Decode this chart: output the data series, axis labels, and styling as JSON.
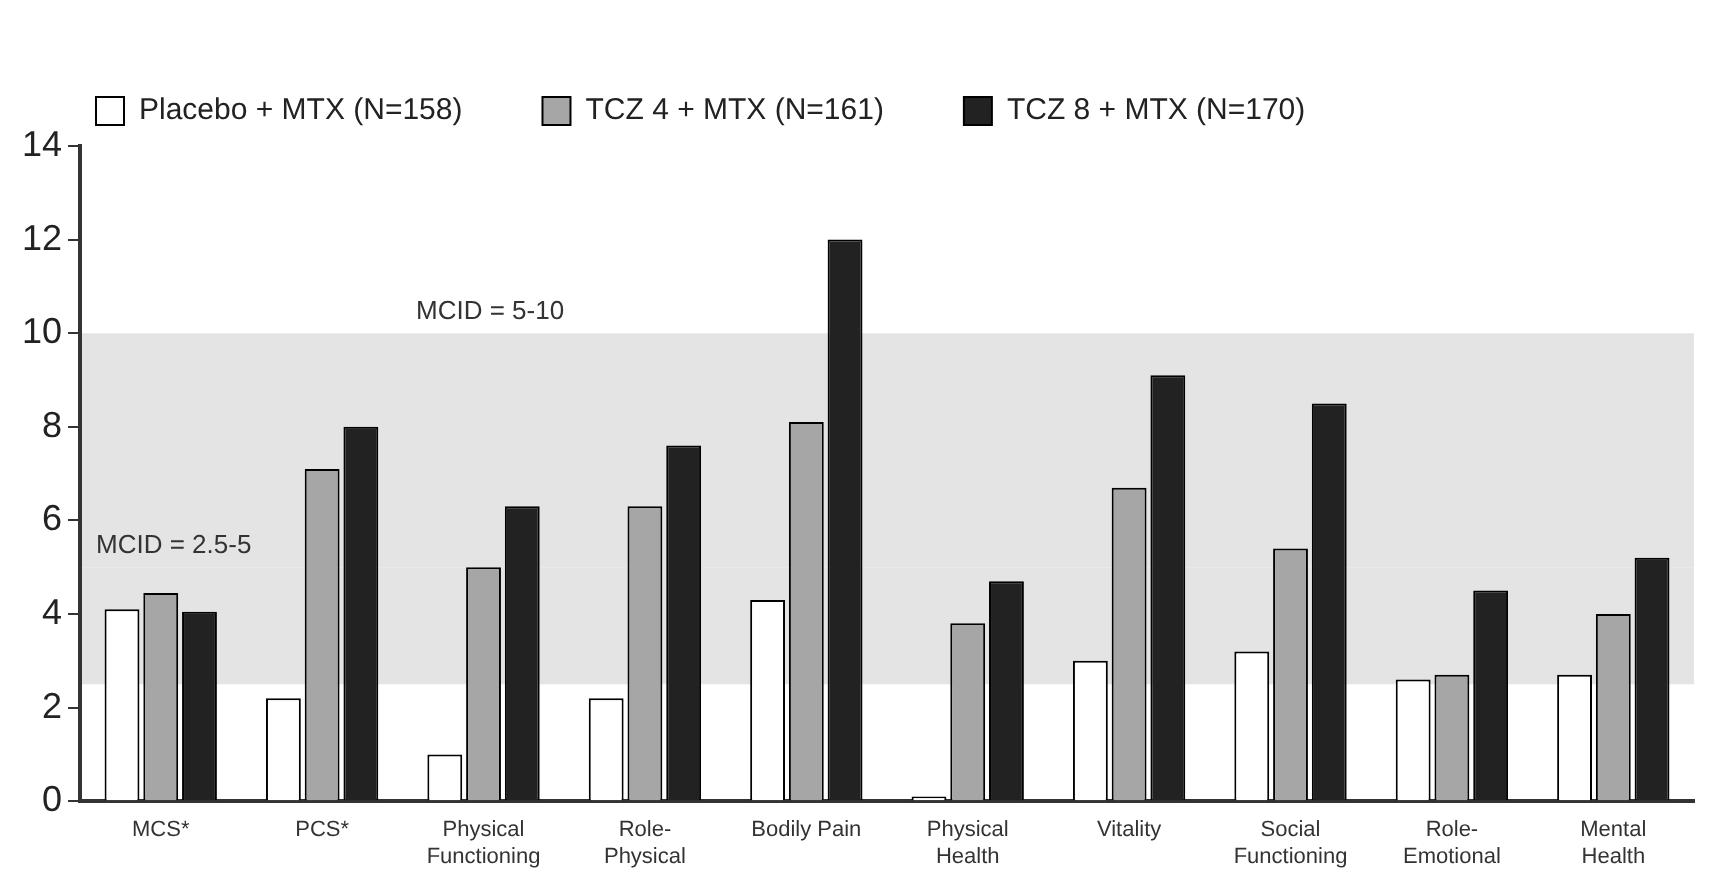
{
  "chart_data": {
    "type": "bar",
    "categories": [
      "MCS*",
      "PCS*",
      "Physical Functioning",
      "Role-Physical",
      "Bodily Pain",
      "Physical Health",
      "Vitality",
      "Social Functioning",
      "Role-Emotional",
      "Mental Health"
    ],
    "series": [
      {
        "name": "Placebo + MTX (N=158)",
        "color": "#ffffff",
        "values": [
          4.1,
          2.2,
          1.0,
          2.2,
          4.3,
          0.1,
          3.0,
          3.2,
          2.6,
          2.7
        ]
      },
      {
        "name": "TCZ 4 + MTX (N=161)",
        "color": "#a6a6a6",
        "values": [
          4.45,
          7.1,
          5.0,
          6.3,
          8.1,
          3.8,
          6.7,
          5.4,
          2.7,
          4.0
        ]
      },
      {
        "name": "TCZ 8 + MTX (N=170)",
        "color": "#222222",
        "values": [
          4.05,
          8.0,
          6.3,
          7.6,
          12.0,
          4.7,
          9.1,
          8.5,
          4.5,
          5.2
        ]
      }
    ],
    "ylim": [
      0,
      14
    ],
    "yticks": [
      0,
      2,
      4,
      6,
      8,
      10,
      12,
      14
    ],
    "grid": false,
    "legend": "top",
    "bands": [
      {
        "axis": "y",
        "from": 2.5,
        "to": 5,
        "label": "MCID = 2.5-5",
        "color": "#e4e4e4"
      },
      {
        "axis": "y",
        "from": 5,
        "to": 10,
        "label": "MCID = 5-10",
        "color": "#e4e4e4"
      }
    ]
  }
}
